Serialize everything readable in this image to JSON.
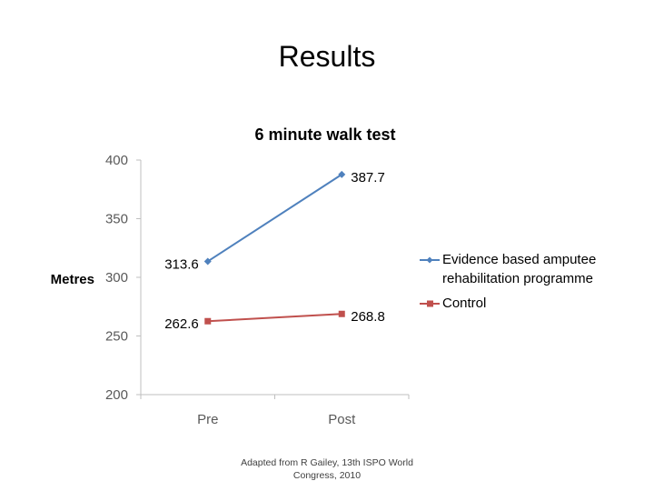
{
  "slide": {
    "title": "Results",
    "source_line1": "Adapted from R Gailey, 13th ISPO World",
    "source_line2": "Congress, 2010"
  },
  "chart_data": {
    "type": "line",
    "title": "6 minute walk test",
    "xlabel": "",
    "ylabel": "Metres",
    "categories": [
      "Pre",
      "Post"
    ],
    "ylim": [
      200,
      400
    ],
    "yticks": [
      200,
      250,
      300,
      350,
      400
    ],
    "grid": false,
    "legend_position": "right",
    "series": [
      {
        "name": "Evidence based amputee rehabilitation programme",
        "name_lines": [
          "Evidence based amputee",
          "rehabilitation programme"
        ],
        "values": [
          313.6,
          387.7
        ],
        "labels": [
          "313.6",
          "387.7"
        ],
        "color": "#4f81bd",
        "marker": "diamond"
      },
      {
        "name": "Control",
        "name_lines": [
          "Control"
        ],
        "values": [
          262.6,
          268.8
        ],
        "labels": [
          "262.6",
          "268.8"
        ],
        "color": "#c0504d",
        "marker": "square"
      }
    ]
  }
}
